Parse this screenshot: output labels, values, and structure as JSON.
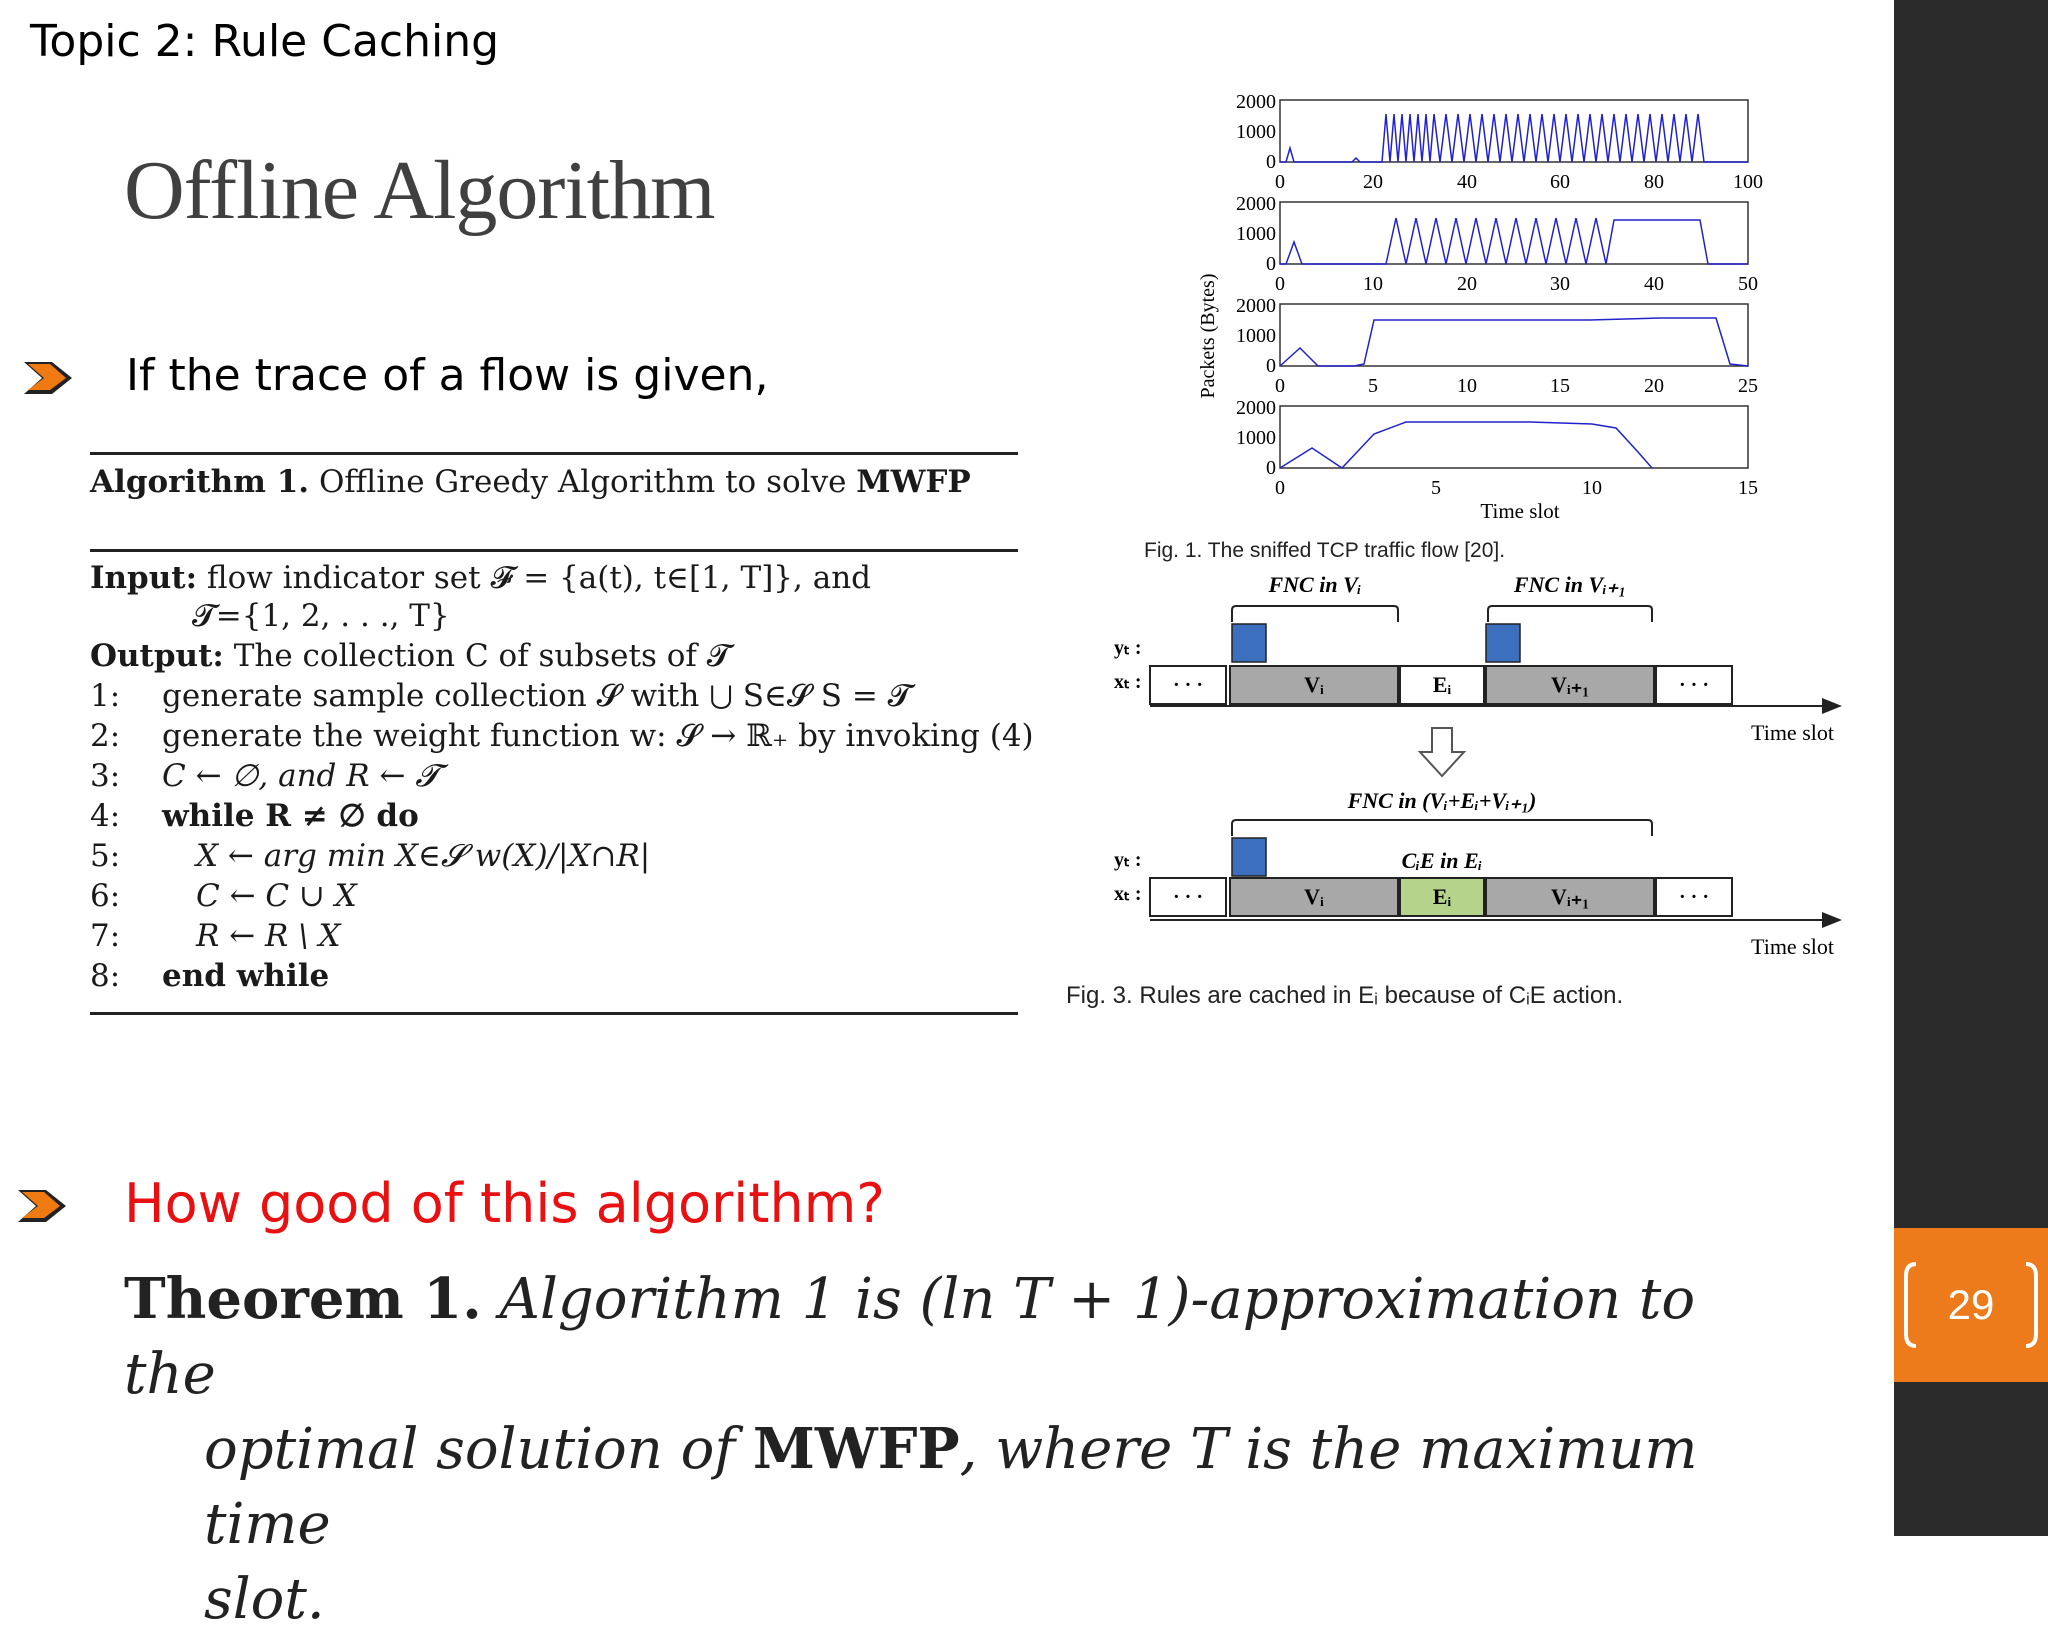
{
  "header": {
    "topic": "Topic 2: Rule Caching",
    "title": "Offline Algorithm"
  },
  "bullets": [
    {
      "text": "If the trace of a flow is given,",
      "icon": "chevron-arrow-icon"
    },
    {
      "text": "How good of this algorithm?",
      "icon": "chevron-arrow-icon",
      "color": "#e81010"
    }
  ],
  "algorithm": {
    "caption_label": "Algorithm 1.",
    "caption_text": "Offline Greedy Algorithm to solve",
    "caption_bold": "MWFP",
    "input_label": "Input:",
    "input_text": "flow indicator set 𝓕 = {a(t), t∈[1, T]}, and",
    "input_text2": "𝓣={1, 2, . . ., T}",
    "output_label": "Output:",
    "output_text": "The collection C of subsets of 𝓣",
    "lines": [
      {
        "num": "1:",
        "text": "generate sample collection 𝓢 with ⋃ S∈𝓢 S = 𝓣"
      },
      {
        "num": "2:",
        "text": "generate the weight function w: 𝓢 → ℝ₊ by invoking (4)"
      },
      {
        "num": "3:",
        "text": "C ← ∅, and R ← 𝓣"
      },
      {
        "num": "4:",
        "text": "while R ≠ ∅ do"
      },
      {
        "num": "5:",
        "text": "X ← arg min X∈𝓢 w(X)/|X∩R|"
      },
      {
        "num": "6:",
        "text": "C ← C ∪ X"
      },
      {
        "num": "7:",
        "text": "R ← R \\ X"
      },
      {
        "num": "8:",
        "text": "end while"
      }
    ]
  },
  "fig1": {
    "caption": "Fig. 1. The sniffed TCP traffic flow [20].",
    "ylabel": "Packets (Bytes)",
    "xlabel": "Time slot",
    "yticks": [
      "2000",
      "1000",
      "0"
    ],
    "panels": [
      {
        "xticks": [
          "0",
          "20",
          "40",
          "60",
          "80",
          "100"
        ]
      },
      {
        "xticks": [
          "0",
          "10",
          "20",
          "30",
          "40",
          "50"
        ]
      },
      {
        "xticks": [
          "0",
          "5",
          "10",
          "15",
          "20",
          "25"
        ]
      },
      {
        "xticks": [
          "0",
          "5",
          "10",
          "15"
        ]
      }
    ]
  },
  "fig3": {
    "caption": "Fig. 3. Rules are cached in Eᵢ because of CᵢE action.",
    "top_brace_1": "FNC in Vᵢ",
    "top_brace_2": "FNC in Vᵢ₊₁",
    "bottom_brace": "FNC in (Vᵢ+Eᵢ+Vᵢ₊₁)",
    "cie_label": "CᵢE in Eᵢ",
    "y_label": "yₜ :",
    "x_label": "xₜ :",
    "dots": "· · ·",
    "vi": "Vᵢ",
    "ei": "Eᵢ",
    "vi1": "Vᵢ₊₁",
    "time_slot": "Time slot",
    "colors": {
      "blue": "#3d6fbf",
      "gray": "#a8a8a8",
      "green": "#b5d38a"
    }
  },
  "theorem": {
    "line1_bold": "Theorem 1.",
    "line1_italic": "Algorithm 1 is (ln T + 1)-approximation to the",
    "line2_a": "optimal solution of",
    "line2_bold": "MWFP",
    "line2_b": ", where T is the maximum time",
    "line3": "slot."
  },
  "page": {
    "number": "29"
  },
  "colors": {
    "sidebar": "#2b2b2b",
    "page_box": "#ee7b1b",
    "accent_red": "#e81010",
    "arrow_orange": "#f07a12"
  }
}
